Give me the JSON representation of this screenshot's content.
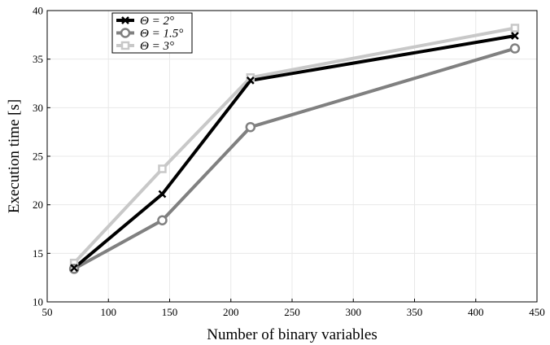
{
  "chart_data": {
    "type": "line",
    "title": "",
    "xlabel": "Number of binary variables",
    "ylabel": "Execution time [s]",
    "xlim": [
      50,
      450
    ],
    "ylim": [
      10,
      40
    ],
    "xticks": [
      50,
      100,
      150,
      200,
      250,
      300,
      350,
      400,
      450
    ],
    "yticks": [
      10,
      15,
      20,
      25,
      30,
      35,
      40
    ],
    "grid": true,
    "legend_position": "top-left",
    "series": [
      {
        "name": "Θ = 2°",
        "marker": "x",
        "color": "#000000",
        "x": [
          72,
          144,
          216,
          432
        ],
        "y": [
          13.5,
          21.1,
          32.8,
          37.4
        ]
      },
      {
        "name": "Θ = 1.5°",
        "marker": "circle",
        "color": "#808080",
        "x": [
          72,
          144,
          216,
          432
        ],
        "y": [
          13.4,
          18.4,
          28.0,
          36.1
        ]
      },
      {
        "name": "Θ = 3°",
        "marker": "square",
        "color": "#c8c8c8",
        "x": [
          72,
          144,
          216,
          432
        ],
        "y": [
          14.0,
          23.7,
          33.1,
          38.2
        ]
      }
    ]
  }
}
